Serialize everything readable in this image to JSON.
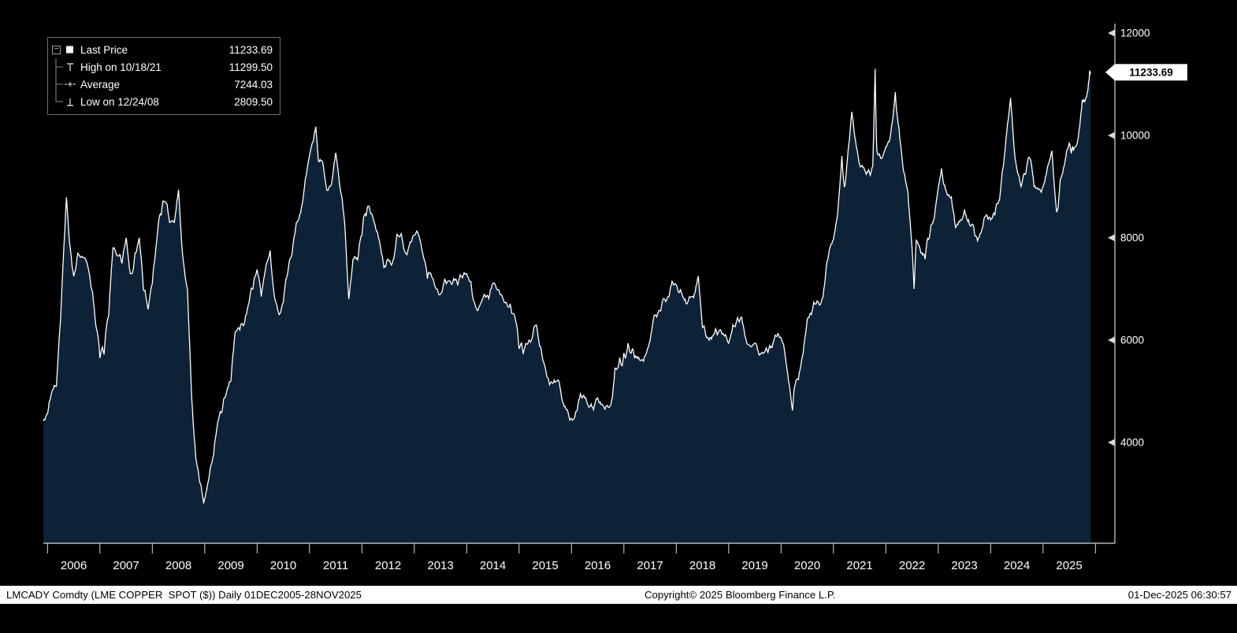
{
  "legend": {
    "collapse_glyph": "−",
    "items": [
      {
        "marker": "square",
        "label": "Last Price",
        "value": "11233.69"
      },
      {
        "marker": "high",
        "label": "High on 10/18/21",
        "value": "11299.50"
      },
      {
        "marker": "average",
        "label": "Average",
        "value": "7244.03"
      },
      {
        "marker": "low",
        "label": "Low on 12/24/08",
        "value": "2809.50"
      }
    ]
  },
  "y_axis": {
    "ticks": [
      12000,
      10000,
      8000,
      6000,
      4000
    ],
    "last_price": "11233.69"
  },
  "x_axis": {
    "years": [
      2006,
      2007,
      2008,
      2009,
      2010,
      2011,
      2012,
      2013,
      2014,
      2015,
      2016,
      2017,
      2018,
      2019,
      2020,
      2021,
      2022,
      2023,
      2024,
      2025
    ]
  },
  "status_bar": {
    "left": "LMCADY Comdty (LME COPPER  SPOT ($)) Daily 01DEC2005-28NOV2025",
    "center": "Copyright© 2025 Bloomberg Finance L.P.",
    "right": "01-Dec-2025 06:30:57"
  },
  "chart_data": {
    "type": "area",
    "title": "LMCADY Comdty (LME COPPER SPOT ($)) Daily 01DEC2005-28NOV2025",
    "series_name": "Last Price",
    "x_range": [
      2005.92,
      2025.92
    ],
    "y_ticks": [
      4000,
      6000,
      8000,
      10000,
      12000
    ],
    "x_tick_years": [
      2006,
      2007,
      2008,
      2009,
      2010,
      2011,
      2012,
      2013,
      2014,
      2015,
      2016,
      2017,
      2018,
      2019,
      2020,
      2021,
      2022,
      2023,
      2024,
      2025
    ],
    "grid": false,
    "legend_position": "top-left",
    "stats": {
      "last": 11233.69,
      "high": {
        "date": "10/18/21",
        "value": 11299.5
      },
      "average": 7244.03,
      "low": {
        "date": "12/24/08",
        "value": 2809.5
      }
    },
    "colors": {
      "line": "#ffffff",
      "fill": "#0d2236",
      "background": "#000000",
      "axis": "#d8d8d8",
      "tag_bg": "#ffffff",
      "tag_text": "#000000"
    },
    "series": [
      {
        "name": "Last Price",
        "points": [
          [
            2005.92,
            4420
          ],
          [
            2006.0,
            4560
          ],
          [
            2006.08,
            4980
          ],
          [
            2006.17,
            5100
          ],
          [
            2006.25,
            6400
          ],
          [
            2006.36,
            8790
          ],
          [
            2006.42,
            7900
          ],
          [
            2006.5,
            7250
          ],
          [
            2006.58,
            7700
          ],
          [
            2006.67,
            7620
          ],
          [
            2006.75,
            7520
          ],
          [
            2006.83,
            7050
          ],
          [
            2006.92,
            6300
          ],
          [
            2007.0,
            5650
          ],
          [
            2007.08,
            5720
          ],
          [
            2007.17,
            6500
          ],
          [
            2007.25,
            7800
          ],
          [
            2007.33,
            7650
          ],
          [
            2007.42,
            7500
          ],
          [
            2007.5,
            8000
          ],
          [
            2007.58,
            7300
          ],
          [
            2007.67,
            7700
          ],
          [
            2007.75,
            8000
          ],
          [
            2007.83,
            6980
          ],
          [
            2007.92,
            6600
          ],
          [
            2008.0,
            7100
          ],
          [
            2008.08,
            7900
          ],
          [
            2008.17,
            8450
          ],
          [
            2008.25,
            8700
          ],
          [
            2008.33,
            8300
          ],
          [
            2008.42,
            8300
          ],
          [
            2008.5,
            8940
          ],
          [
            2008.58,
            7650
          ],
          [
            2008.67,
            7000
          ],
          [
            2008.75,
            4900
          ],
          [
            2008.83,
            3700
          ],
          [
            2008.98,
            2809.5
          ],
          [
            2009.08,
            3300
          ],
          [
            2009.17,
            3750
          ],
          [
            2009.25,
            4400
          ],
          [
            2009.33,
            4600
          ],
          [
            2009.42,
            5000
          ],
          [
            2009.5,
            5200
          ],
          [
            2009.58,
            6150
          ],
          [
            2009.67,
            6200
          ],
          [
            2009.75,
            6300
          ],
          [
            2009.83,
            6680
          ],
          [
            2009.92,
            7000
          ],
          [
            2010.0,
            7380
          ],
          [
            2010.08,
            6850
          ],
          [
            2010.17,
            7460
          ],
          [
            2010.25,
            7750
          ],
          [
            2010.33,
            6850
          ],
          [
            2010.42,
            6500
          ],
          [
            2010.5,
            6740
          ],
          [
            2010.58,
            7290
          ],
          [
            2010.67,
            7710
          ],
          [
            2010.75,
            8300
          ],
          [
            2010.83,
            8480
          ],
          [
            2010.92,
            9150
          ],
          [
            2011.0,
            9600
          ],
          [
            2011.12,
            10170
          ],
          [
            2011.17,
            9500
          ],
          [
            2011.25,
            9480
          ],
          [
            2011.33,
            8930
          ],
          [
            2011.42,
            9050
          ],
          [
            2011.5,
            9660
          ],
          [
            2011.58,
            9000
          ],
          [
            2011.67,
            8300
          ],
          [
            2011.75,
            6800
          ],
          [
            2011.83,
            7580
          ],
          [
            2011.92,
            7570
          ],
          [
            2012.0,
            8040
          ],
          [
            2012.08,
            8420
          ],
          [
            2012.17,
            8470
          ],
          [
            2012.25,
            8260
          ],
          [
            2012.33,
            7950
          ],
          [
            2012.42,
            7420
          ],
          [
            2012.5,
            7580
          ],
          [
            2012.58,
            7500
          ],
          [
            2012.67,
            8070
          ],
          [
            2012.75,
            8080
          ],
          [
            2012.83,
            7700
          ],
          [
            2012.92,
            7920
          ],
          [
            2013.0,
            8050
          ],
          [
            2013.08,
            8060
          ],
          [
            2013.17,
            7650
          ],
          [
            2013.25,
            7200
          ],
          [
            2013.33,
            7240
          ],
          [
            2013.42,
            7000
          ],
          [
            2013.5,
            6900
          ],
          [
            2013.58,
            7190
          ],
          [
            2013.67,
            7160
          ],
          [
            2013.75,
            7200
          ],
          [
            2013.83,
            7070
          ],
          [
            2013.92,
            7220
          ],
          [
            2014.0,
            7300
          ],
          [
            2014.08,
            7150
          ],
          [
            2014.17,
            6650
          ],
          [
            2014.25,
            6670
          ],
          [
            2014.33,
            6890
          ],
          [
            2014.42,
            6810
          ],
          [
            2014.5,
            7110
          ],
          [
            2014.58,
            6990
          ],
          [
            2014.67,
            6870
          ],
          [
            2014.75,
            6740
          ],
          [
            2014.83,
            6710
          ],
          [
            2014.92,
            6450
          ],
          [
            2015.0,
            5830
          ],
          [
            2015.08,
            5730
          ],
          [
            2015.17,
            5940
          ],
          [
            2015.25,
            6040
          ],
          [
            2015.33,
            6295
          ],
          [
            2015.42,
            5830
          ],
          [
            2015.5,
            5460
          ],
          [
            2015.58,
            5130
          ],
          [
            2015.67,
            5220
          ],
          [
            2015.75,
            5220
          ],
          [
            2015.83,
            4800
          ],
          [
            2015.92,
            4640
          ],
          [
            2016.0,
            4470
          ],
          [
            2016.08,
            4600
          ],
          [
            2016.17,
            4950
          ],
          [
            2016.25,
            4870
          ],
          [
            2016.33,
            4690
          ],
          [
            2016.42,
            4640
          ],
          [
            2016.5,
            4870
          ],
          [
            2016.58,
            4750
          ],
          [
            2016.67,
            4720
          ],
          [
            2016.75,
            4730
          ],
          [
            2016.83,
            5450
          ],
          [
            2016.92,
            5660
          ],
          [
            2017.0,
            5750
          ],
          [
            2017.08,
            5940
          ],
          [
            2017.17,
            5830
          ],
          [
            2017.25,
            5680
          ],
          [
            2017.33,
            5600
          ],
          [
            2017.42,
            5720
          ],
          [
            2017.5,
            5990
          ],
          [
            2017.58,
            6490
          ],
          [
            2017.67,
            6580
          ],
          [
            2017.75,
            6810
          ],
          [
            2017.83,
            6830
          ],
          [
            2017.92,
            7150
          ],
          [
            2018.0,
            7080
          ],
          [
            2018.08,
            7000
          ],
          [
            2018.17,
            6800
          ],
          [
            2018.25,
            6850
          ],
          [
            2018.33,
            6830
          ],
          [
            2018.42,
            7250
          ],
          [
            2018.5,
            6250
          ],
          [
            2018.58,
            6050
          ],
          [
            2018.67,
            6020
          ],
          [
            2018.75,
            6220
          ],
          [
            2018.83,
            6200
          ],
          [
            2018.92,
            6080
          ],
          [
            2019.0,
            5940
          ],
          [
            2019.08,
            6300
          ],
          [
            2019.17,
            6440
          ],
          [
            2019.25,
            6450
          ],
          [
            2019.33,
            6020
          ],
          [
            2019.42,
            5870
          ],
          [
            2019.5,
            5940
          ],
          [
            2019.58,
            5710
          ],
          [
            2019.67,
            5750
          ],
          [
            2019.75,
            5760
          ],
          [
            2019.83,
            5860
          ],
          [
            2019.92,
            6070
          ],
          [
            2020.0,
            6050
          ],
          [
            2020.08,
            5690
          ],
          [
            2020.22,
            4625
          ],
          [
            2020.25,
            5050
          ],
          [
            2020.33,
            5230
          ],
          [
            2020.42,
            5740
          ],
          [
            2020.5,
            6410
          ],
          [
            2020.58,
            6500
          ],
          [
            2020.67,
            6710
          ],
          [
            2020.75,
            6700
          ],
          [
            2020.83,
            7080
          ],
          [
            2020.92,
            7760
          ],
          [
            2021.0,
            7960
          ],
          [
            2021.08,
            8460
          ],
          [
            2021.16,
            9600
          ],
          [
            2021.21,
            8990
          ],
          [
            2021.25,
            9340
          ],
          [
            2021.35,
            10460
          ],
          [
            2021.42,
            9900
          ],
          [
            2021.5,
            9430
          ],
          [
            2021.58,
            9370
          ],
          [
            2021.67,
            9330
          ],
          [
            2021.75,
            9400
          ],
          [
            2021.795,
            11299.5
          ],
          [
            2021.82,
            10000
          ],
          [
            2021.83,
            9700
          ],
          [
            2021.92,
            9550
          ],
          [
            2022.0,
            9780
          ],
          [
            2022.08,
            9940
          ],
          [
            2022.18,
            10845
          ],
          [
            2022.25,
            10160
          ],
          [
            2022.33,
            9350
          ],
          [
            2022.42,
            8900
          ],
          [
            2022.5,
            7800
          ],
          [
            2022.54,
            7000
          ],
          [
            2022.58,
            7950
          ],
          [
            2022.67,
            7700
          ],
          [
            2022.75,
            7580
          ],
          [
            2022.83,
            8000
          ],
          [
            2022.92,
            8370
          ],
          [
            2023.0,
            8980
          ],
          [
            2023.06,
            9356
          ],
          [
            2023.17,
            8850
          ],
          [
            2023.25,
            8800
          ],
          [
            2023.33,
            8200
          ],
          [
            2023.42,
            8350
          ],
          [
            2023.5,
            8550
          ],
          [
            2023.58,
            8350
          ],
          [
            2023.67,
            8250
          ],
          [
            2023.75,
            7940
          ],
          [
            2023.83,
            8150
          ],
          [
            2023.92,
            8450
          ],
          [
            2024.0,
            8350
          ],
          [
            2024.08,
            8450
          ],
          [
            2024.17,
            8750
          ],
          [
            2024.25,
            9450
          ],
          [
            2024.38,
            10730
          ],
          [
            2024.45,
            9750
          ],
          [
            2024.5,
            9350
          ],
          [
            2024.58,
            9000
          ],
          [
            2024.67,
            9250
          ],
          [
            2024.75,
            9550
          ],
          [
            2024.83,
            9000
          ],
          [
            2024.92,
            8950
          ],
          [
            2025.0,
            9000
          ],
          [
            2025.08,
            9350
          ],
          [
            2025.17,
            9700
          ],
          [
            2025.26,
            8500
          ],
          [
            2025.33,
            9150
          ],
          [
            2025.42,
            9500
          ],
          [
            2025.5,
            9850
          ],
          [
            2025.54,
            9650
          ],
          [
            2025.58,
            9700
          ],
          [
            2025.67,
            9950
          ],
          [
            2025.75,
            10700
          ],
          [
            2025.83,
            10750
          ],
          [
            2025.87,
            11050
          ],
          [
            2025.89,
            11270
          ],
          [
            2025.91,
            11233.69
          ]
        ]
      }
    ]
  }
}
